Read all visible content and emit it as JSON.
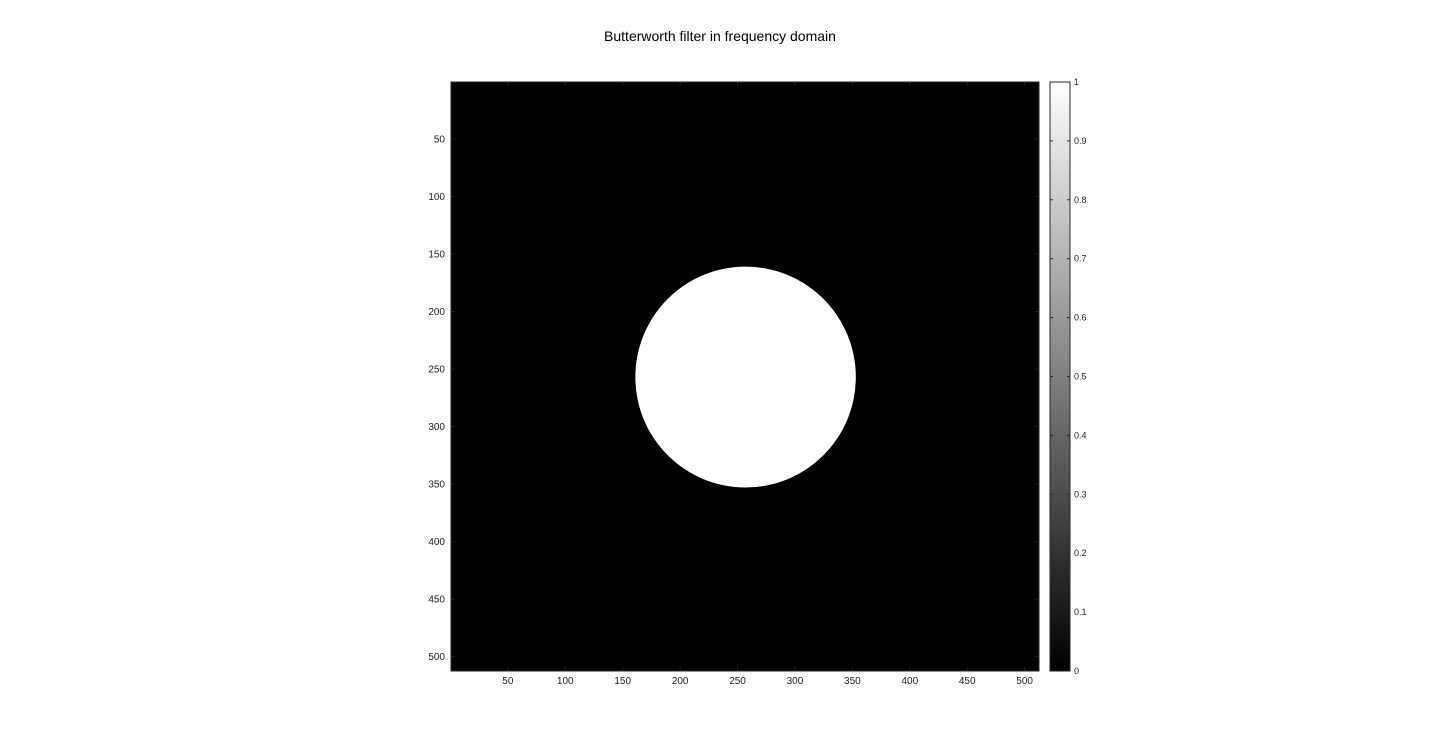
{
  "chart_data": {
    "type": "heatmap",
    "title": "Butterworth filter in frequency domain",
    "xlabel": "",
    "ylabel": "",
    "xlim": [
      0.5,
      512.5
    ],
    "ylim": [
      0.5,
      512.5
    ],
    "y_reversed": true,
    "x_ticks": [
      50,
      100,
      150,
      200,
      250,
      300,
      350,
      400,
      450,
      500
    ],
    "y_ticks": [
      50,
      100,
      150,
      200,
      250,
      300,
      350,
      400,
      450,
      500
    ],
    "image": {
      "description_values": "ideal lowpass disk: value 1 inside radius, 0 outside",
      "background_value": 0,
      "disk_value": 1,
      "center": [
        257,
        257
      ],
      "radius": 96
    },
    "colormap": "gray",
    "colorbar": {
      "range": [
        0,
        1
      ],
      "ticks": [
        0,
        0.1,
        0.2,
        0.3,
        0.4,
        0.5,
        0.6,
        0.7,
        0.8,
        0.9,
        1
      ],
      "tick_labels": [
        "0",
        "0.1",
        "0.2",
        "0.3",
        "0.4",
        "0.5",
        "0.6",
        "0.7",
        "0.8",
        "0.9",
        "1"
      ]
    },
    "grid": false
  }
}
